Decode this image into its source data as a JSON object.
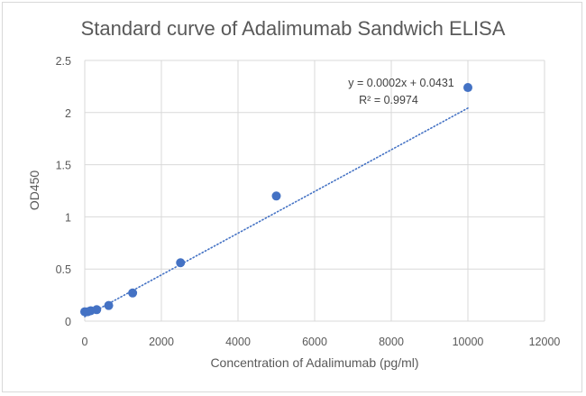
{
  "chart_data": {
    "type": "scatter",
    "title": "Standard curve of Adalimumab Sandwich ELISA",
    "xlabel": "Concentration of Adalimumab (pg/ml)",
    "ylabel": "OD450",
    "xlim": [
      0,
      12000
    ],
    "ylim": [
      0,
      2.5
    ],
    "x_ticks": [
      0,
      2000,
      4000,
      6000,
      8000,
      10000,
      12000
    ],
    "y_ticks": [
      0,
      0.5,
      1,
      1.5,
      2,
      2.5
    ],
    "x_tick_labels": [
      "0",
      "2000",
      "4000",
      "6000",
      "8000",
      "10000",
      "12000"
    ],
    "y_tick_labels": [
      "0",
      "0.5",
      "1",
      "1.5",
      "2",
      "2.5"
    ],
    "grid": true,
    "points": [
      {
        "x": 0,
        "y": 0.09
      },
      {
        "x": 78,
        "y": 0.09
      },
      {
        "x": 156,
        "y": 0.1
      },
      {
        "x": 312,
        "y": 0.11
      },
      {
        "x": 625,
        "y": 0.15
      },
      {
        "x": 1250,
        "y": 0.27
      },
      {
        "x": 2500,
        "y": 0.56
      },
      {
        "x": 5000,
        "y": 1.2
      },
      {
        "x": 10000,
        "y": 2.24
      }
    ],
    "trendline": {
      "style": "dotted",
      "slope": 0.0002,
      "intercept": 0.0431,
      "x_range": [
        0,
        10000
      ],
      "equation": "y = 0.0002x + 0.0431",
      "r_squared": "R² = 0.9974"
    },
    "colors": {
      "point": "#4472c4",
      "trendline": "#4472c4",
      "grid": "#d9d9d9",
      "text": "#595959"
    }
  }
}
